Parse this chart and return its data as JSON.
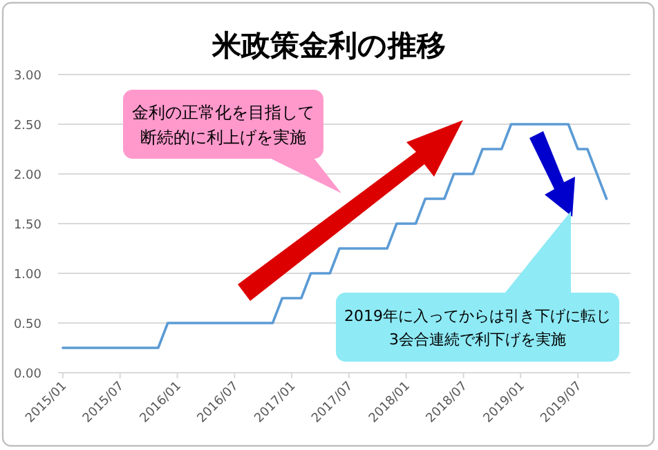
{
  "chart_data": {
    "type": "line",
    "title": "米政策金利の推移",
    "categories": [
      "2015/01",
      null,
      null,
      null,
      null,
      null,
      "2015/07",
      null,
      null,
      null,
      null,
      null,
      "2016/01",
      null,
      null,
      null,
      null,
      null,
      "2016/07",
      null,
      null,
      null,
      null,
      null,
      "2017/01",
      null,
      null,
      null,
      null,
      null,
      "2017/07",
      null,
      null,
      null,
      null,
      null,
      "2018/01",
      null,
      null,
      null,
      null,
      null,
      "2018/07",
      null,
      null,
      null,
      null,
      null,
      "2019/01",
      null,
      null,
      null,
      null,
      null,
      "2019/07",
      null,
      null,
      null,
      null,
      null
    ],
    "series": [
      {
        "color": "#5b9bd5",
        "values": [
          0.25,
          0.25,
          0.25,
          0.25,
          0.25,
          0.25,
          0.25,
          0.25,
          0.25,
          0.25,
          0.25,
          0.5,
          0.5,
          0.5,
          0.5,
          0.5,
          0.5,
          0.5,
          0.5,
          0.5,
          0.5,
          0.5,
          0.5,
          0.75,
          0.75,
          0.75,
          1.0,
          1.0,
          1.0,
          1.25,
          1.25,
          1.25,
          1.25,
          1.25,
          1.25,
          1.5,
          1.5,
          1.5,
          1.75,
          1.75,
          1.75,
          2.0,
          2.0,
          2.0,
          2.25,
          2.25,
          2.25,
          2.5,
          2.5,
          2.5,
          2.5,
          2.5,
          2.5,
          2.5,
          2.25,
          2.25,
          2.0,
          1.75,
          null,
          null
        ]
      }
    ],
    "ylim": [
      0,
      3
    ],
    "yticks": [
      {
        "value": 0,
        "label": "0.00"
      },
      {
        "value": 0.5,
        "label": "0.50"
      },
      {
        "value": 1,
        "label": "1.00"
      },
      {
        "value": 1.5,
        "label": "1.50"
      },
      {
        "value": 2,
        "label": "2.00"
      },
      {
        "value": 2.5,
        "label": "2.50"
      },
      {
        "value": 3,
        "label": "3.00"
      }
    ],
    "grid": "y",
    "annotations": [
      "金利の正常化を目指して断続的に利上げを実施",
      "2019年に入ってからは引き下げに転じ3会合連続で利下げを実施"
    ]
  }
}
